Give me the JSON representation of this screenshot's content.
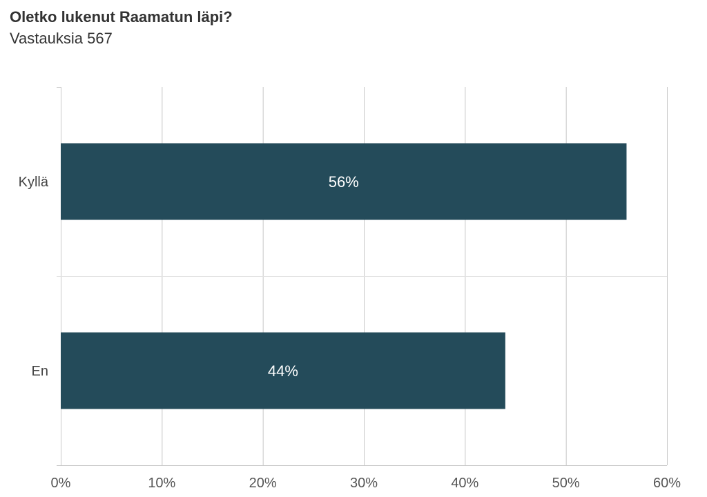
{
  "chart": {
    "title": "Oletko lukenut Raamatun läpi?",
    "subtitle": "Vastauksia 567"
  },
  "chart_data": {
    "type": "bar",
    "orientation": "horizontal",
    "title": "Oletko lukenut Raamatun läpi?",
    "subtitle": "Vastauksia 567",
    "categories": [
      "Kyllä",
      "En"
    ],
    "values": [
      56,
      44
    ],
    "data_labels": [
      "56%",
      "44%"
    ],
    "xlim": [
      0,
      60
    ],
    "x_ticks": [
      0,
      10,
      20,
      30,
      40,
      50,
      60
    ],
    "x_tick_labels": [
      "0%",
      "10%",
      "20%",
      "30%",
      "40%",
      "50%",
      "60%"
    ],
    "xlabel": "",
    "ylabel": "",
    "grid": true,
    "legend": "none",
    "bar_color": "#244B5A",
    "grid_color": "#C8C8C8"
  }
}
